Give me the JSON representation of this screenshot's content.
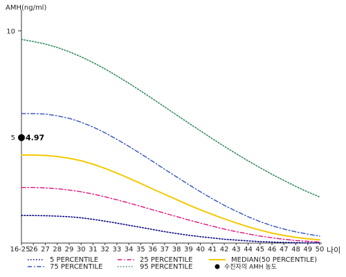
{
  "chart_data": {
    "type": "line",
    "ylabel": "AMH(ng/ml)",
    "xlabel": "나이",
    "categories": [
      "16-25",
      "26",
      "27",
      "28",
      "29",
      "30",
      "31",
      "32",
      "33",
      "34",
      "35",
      "36",
      "37",
      "38",
      "39",
      "40",
      "41",
      "42",
      "43",
      "44",
      "45",
      "46",
      "47",
      "48",
      "49",
      "50"
    ],
    "ylim": [
      0,
      11
    ],
    "yticks": [
      5,
      10
    ],
    "series": [
      {
        "name": "5 PERCENTILE",
        "color": "#000080",
        "dash": "dot",
        "values": [
          1.3,
          1.3,
          1.29,
          1.27,
          1.24,
          1.19,
          1.12,
          1.03,
          0.94,
          0.84,
          0.74,
          0.64,
          0.54,
          0.45,
          0.37,
          0.3,
          0.24,
          0.18,
          0.14,
          0.1,
          0.07,
          0.05,
          0.03,
          0.02,
          0.01,
          0.01
        ]
      },
      {
        "name": "25 PERCENTILE",
        "color": "#e0107a",
        "dash": "dashdot",
        "values": [
          2.62,
          2.62,
          2.6,
          2.56,
          2.5,
          2.42,
          2.31,
          2.18,
          2.04,
          1.89,
          1.73,
          1.57,
          1.41,
          1.25,
          1.09,
          0.94,
          0.8,
          0.66,
          0.54,
          0.43,
          0.33,
          0.25,
          0.18,
          0.12,
          0.08,
          0.05
        ]
      },
      {
        "name": "MEDIAN(50 PERCENTILE)",
        "color": "#f5c800",
        "dash": "solid",
        "values": [
          4.15,
          4.15,
          4.13,
          4.08,
          4.0,
          3.88,
          3.72,
          3.52,
          3.3,
          3.06,
          2.81,
          2.55,
          2.3,
          2.05,
          1.8,
          1.57,
          1.35,
          1.14,
          0.95,
          0.77,
          0.61,
          0.47,
          0.36,
          0.27,
          0.2,
          0.15
        ]
      },
      {
        "name": "75 PERCENTILE",
        "color": "#3050c0",
        "dash": "dashdot",
        "values": [
          6.1,
          6.1,
          6.08,
          6.0,
          5.88,
          5.7,
          5.47,
          5.2,
          4.89,
          4.56,
          4.21,
          3.85,
          3.48,
          3.12,
          2.76,
          2.42,
          2.09,
          1.78,
          1.5,
          1.24,
          1.01,
          0.82,
          0.66,
          0.53,
          0.42,
          0.33
        ]
      },
      {
        "name": "95 PERCENTILE",
        "color": "#2e8b57",
        "dash": "dot",
        "values": [
          9.6,
          9.5,
          9.38,
          9.22,
          9.02,
          8.78,
          8.51,
          8.21,
          7.88,
          7.53,
          7.17,
          6.8,
          6.42,
          6.04,
          5.66,
          5.29,
          4.92,
          4.56,
          4.21,
          3.87,
          3.55,
          3.24,
          2.95,
          2.67,
          2.41,
          2.17
        ]
      }
    ],
    "marker": {
      "name": "수진자의 AMH 농도",
      "x": "16-25",
      "y": 4.97,
      "label": "4.97",
      "color": "#000000"
    },
    "legend": {
      "placement": "bottom",
      "order": [
        "5 PERCENTILE",
        "25 PERCENTILE",
        "MEDIAN(50 PERCENTILE)",
        "75 PERCENTILE",
        "95 PERCENTILE",
        "수진자의 AMH 농도"
      ]
    },
    "grid": false
  }
}
